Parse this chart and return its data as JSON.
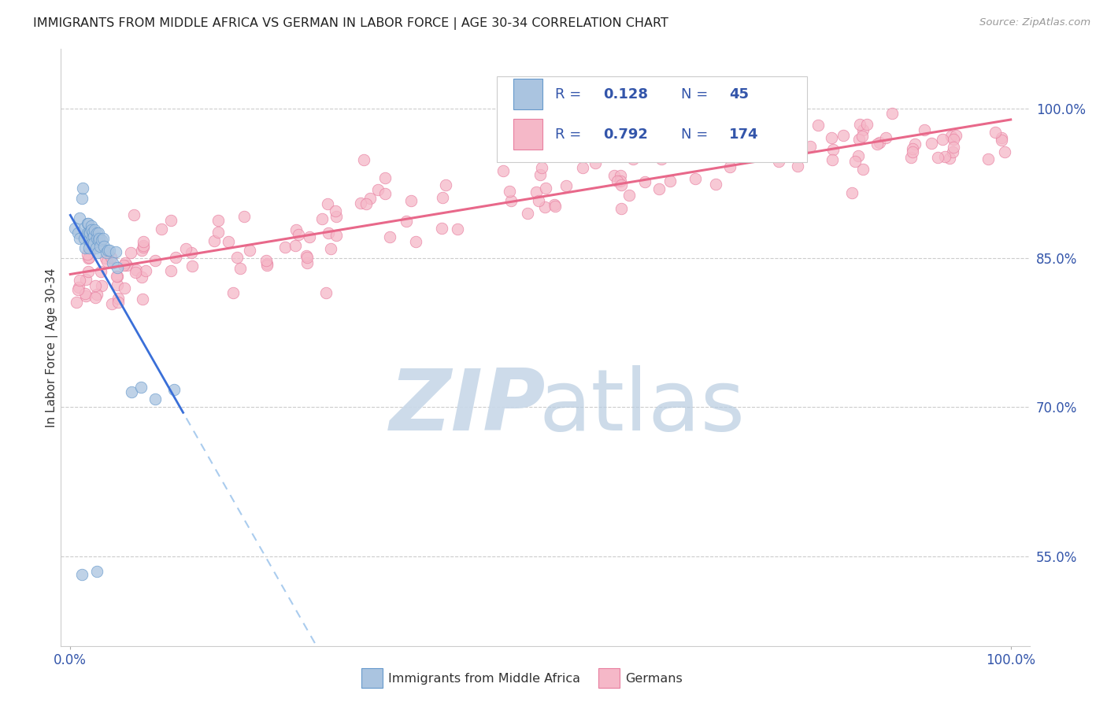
{
  "title": "IMMIGRANTS FROM MIDDLE AFRICA VS GERMAN IN LABOR FORCE | AGE 30-34 CORRELATION CHART",
  "source": "Source: ZipAtlas.com",
  "ylabel": "In Labor Force | Age 30-34",
  "blue_R": 0.128,
  "blue_N": 45,
  "pink_R": 0.792,
  "pink_N": 174,
  "xlim": [
    -0.01,
    1.02
  ],
  "ylim": [
    0.46,
    1.06
  ],
  "ytick_vals": [
    0.55,
    0.7,
    0.85,
    1.0
  ],
  "ytick_labels": [
    "55.0%",
    "70.0%",
    "85.0%",
    "100.0%"
  ],
  "xtick_vals": [
    0.0,
    1.0
  ],
  "xtick_labels": [
    "0.0%",
    "100.0%"
  ],
  "grid_color": "#cccccc",
  "background_color": "#ffffff",
  "blue_fill_color": "#aac4e0",
  "blue_edge_color": "#6699cc",
  "blue_line_color": "#3a6fd8",
  "blue_dash_color": "#aaccee",
  "pink_fill_color": "#f5b8c8",
  "pink_edge_color": "#e87fa0",
  "pink_line_color": "#e8688a",
  "title_color": "#222222",
  "ylabel_color": "#333333",
  "tick_color": "#3355aa",
  "legend_text_color": "#3355aa",
  "legend_rn_color": "#3355aa",
  "watermark_zip_color": "#c8d8e8",
  "watermark_atlas_color": "#b8cce0",
  "source_color": "#999999"
}
